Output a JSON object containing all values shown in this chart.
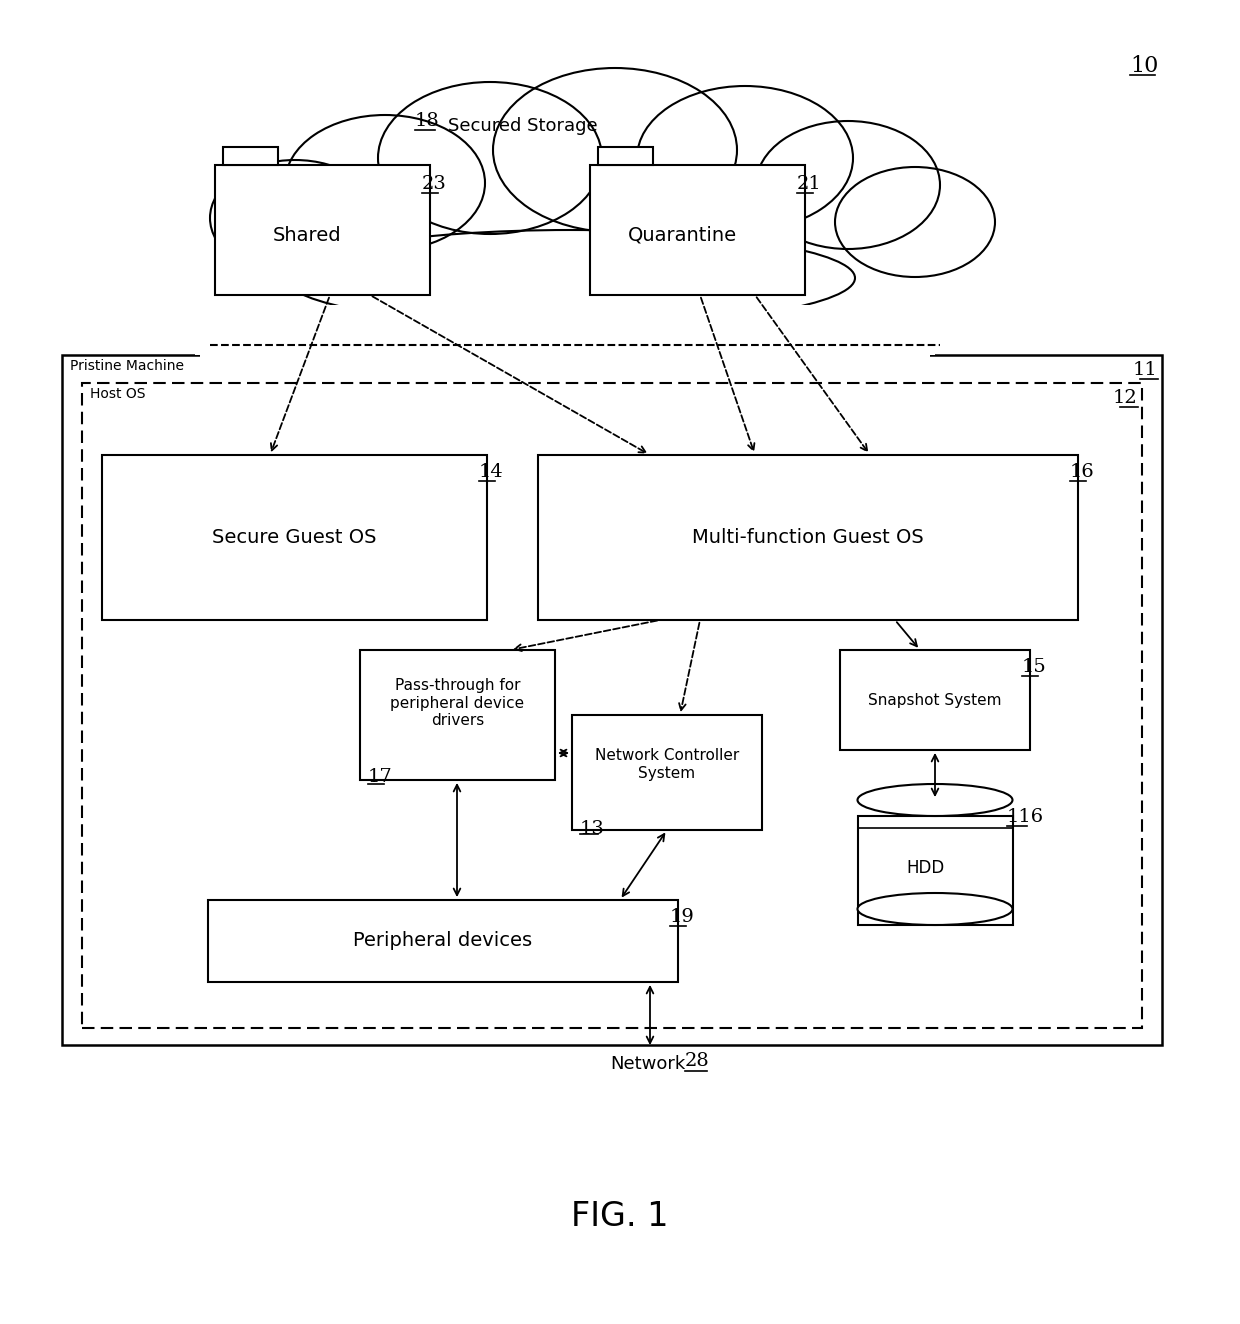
{
  "bg_color": "#ffffff",
  "diagram_num": "10",
  "cloud_num": "18",
  "cloud_label": "Secured Storage",
  "shared_label": "Shared",
  "shared_num": "23",
  "quarantine_label": "Quarantine",
  "quarantine_num": "21",
  "pristine_label": "Pristine Machine",
  "pristine_num": "11",
  "hostos_label": "Host OS",
  "hostos_num": "12",
  "secure_guest_label": "Secure Guest OS",
  "secure_guest_num": "14",
  "multifunction_label": "Multi-function Guest OS",
  "multifunction_num": "16",
  "passthrough_label": "Pass-through for\nperipheral device\ndrivers",
  "passthrough_num": "17",
  "netctrl_label": "Network Controller\nSystem",
  "netctrl_num": "13",
  "snapshot_label": "Snapshot System",
  "snapshot_num": "15",
  "hdd_label": "HDD",
  "hdd_num": "116",
  "peripheral_label": "Peripheral devices",
  "peripheral_num": "19",
  "network_label": "Network",
  "network_num": "28",
  "fig_label": "FIG. 1"
}
